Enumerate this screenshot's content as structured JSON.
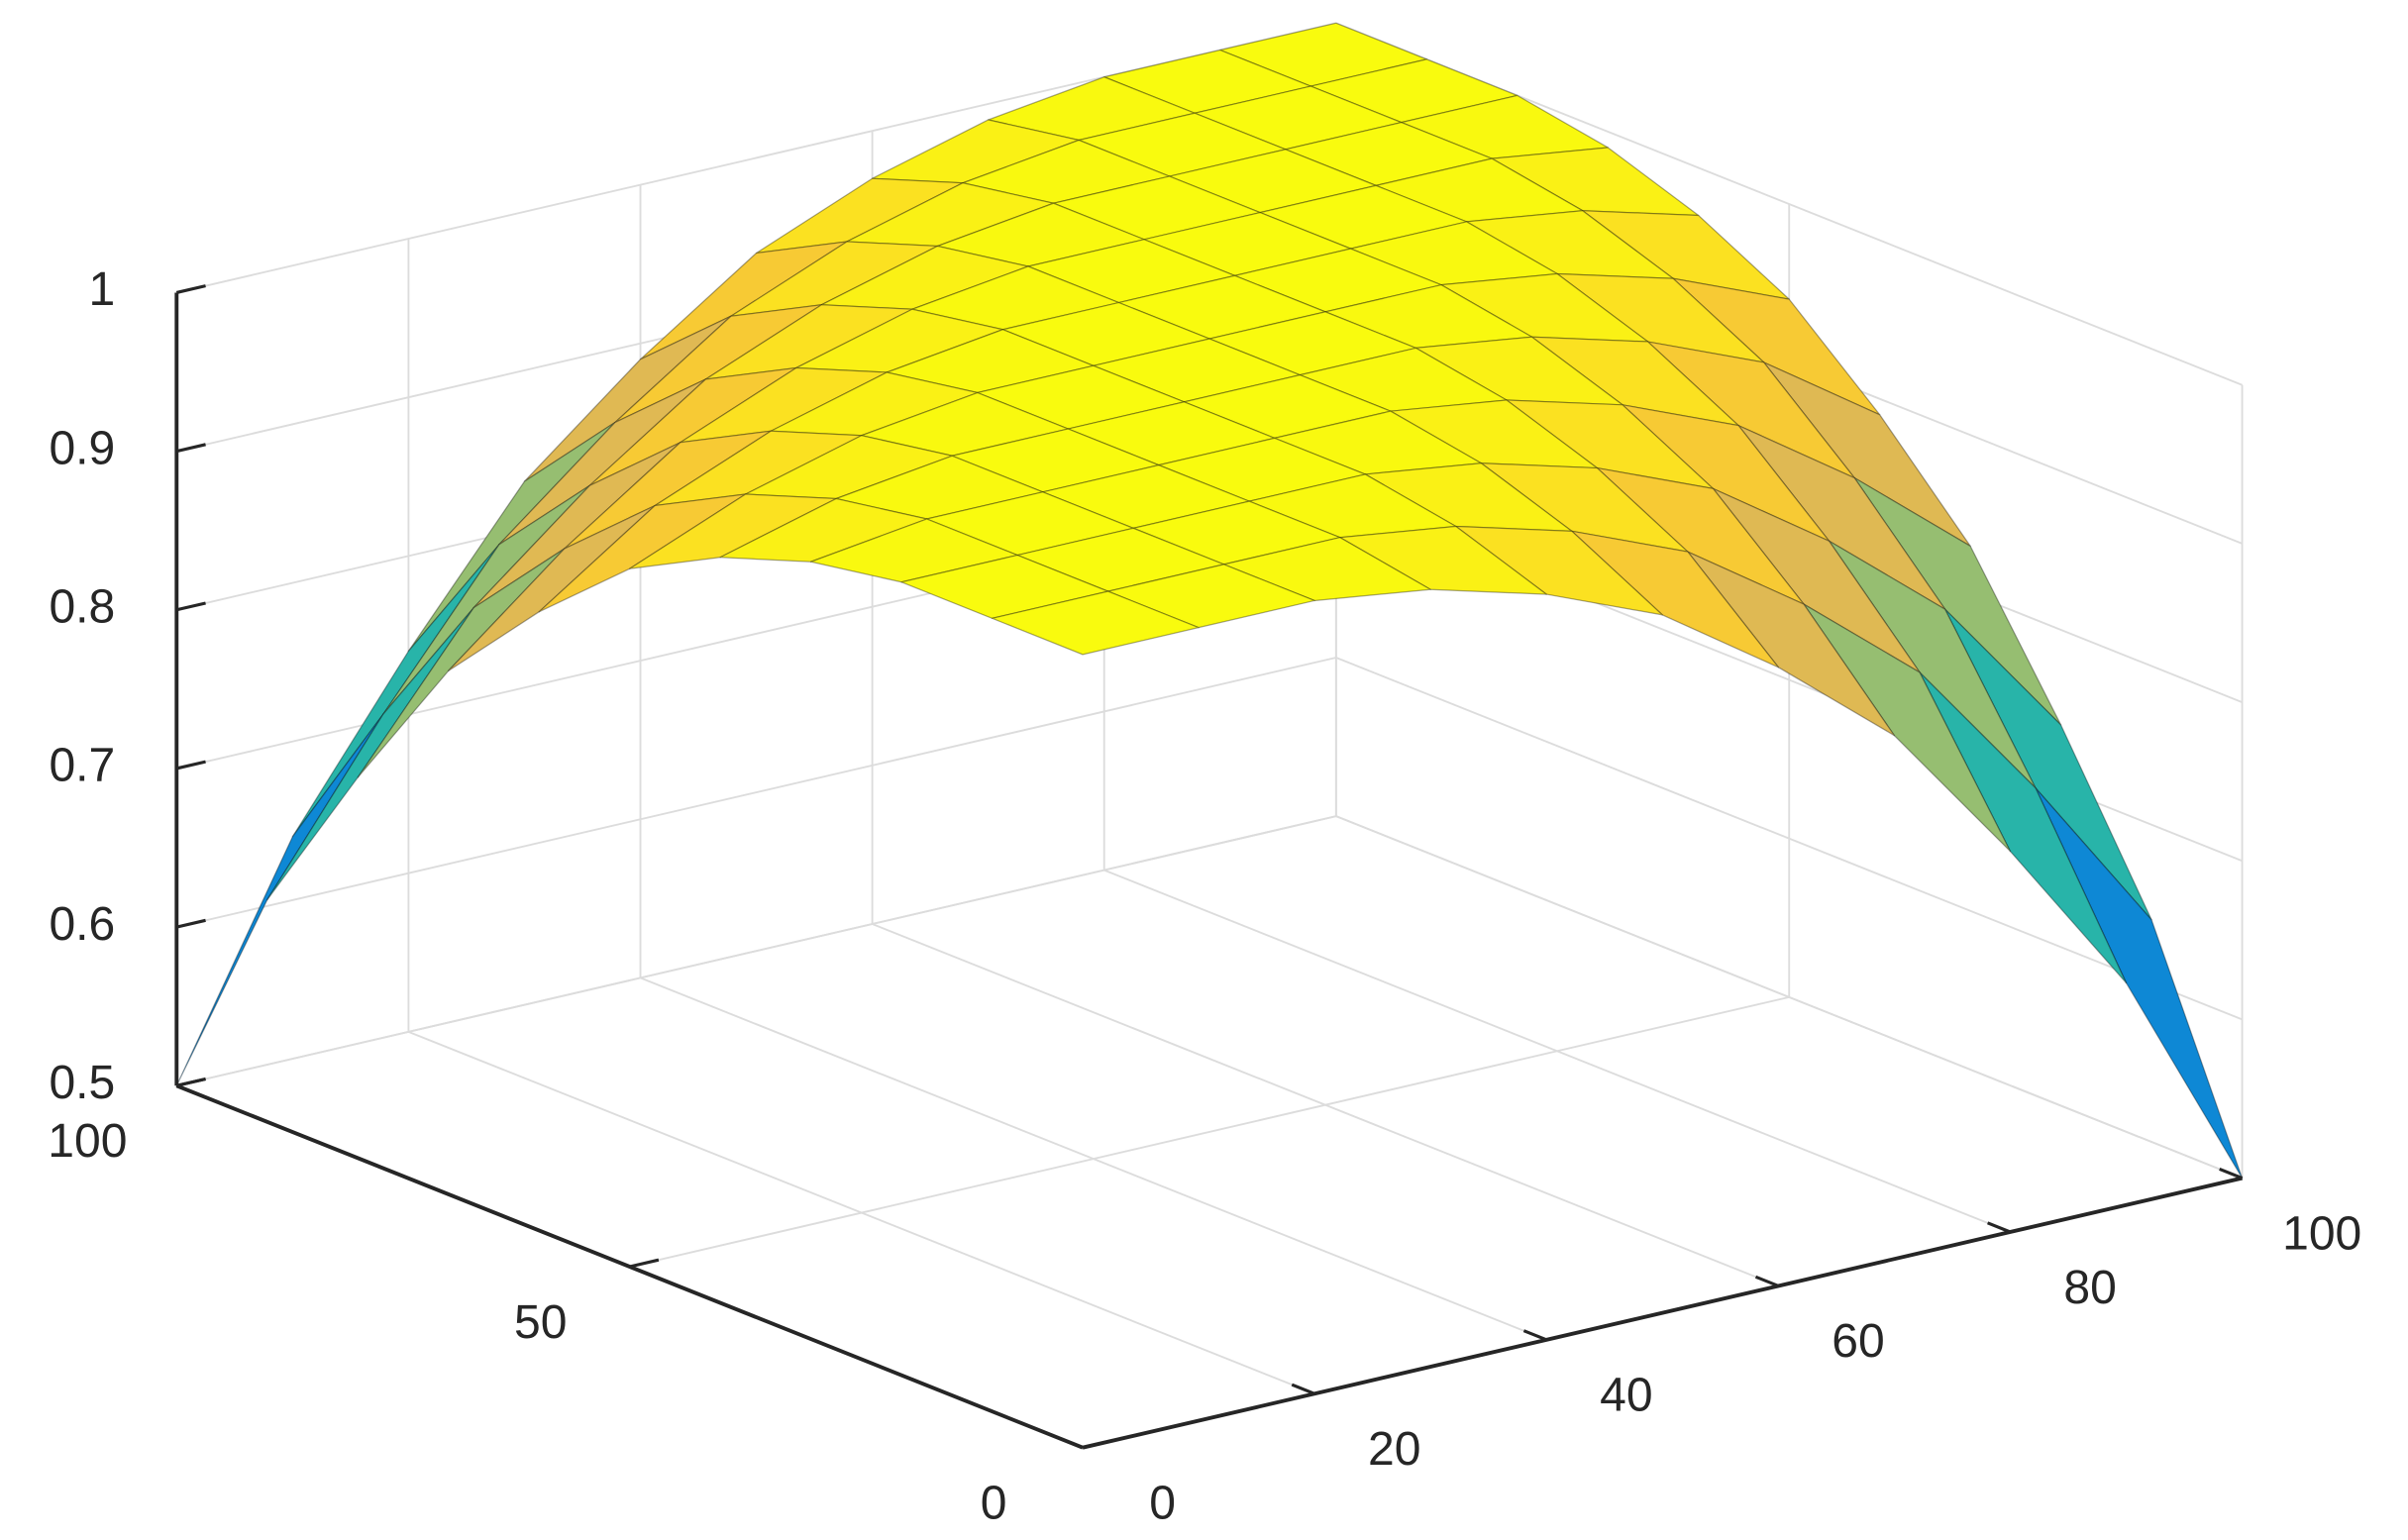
{
  "chart_data": {
    "type": "surface",
    "colormap": "parula",
    "grid": true,
    "x": [
      0,
      10,
      20,
      30,
      40,
      50,
      60,
      70,
      80,
      90,
      100
    ],
    "y": [
      0,
      10,
      20,
      30,
      40,
      50,
      60,
      70,
      80,
      90,
      100
    ],
    "z": [
      [
        1,
        1,
        1,
        0.99,
        0.97,
        0.94,
        0.89,
        0.83,
        0.74,
        0.64,
        0.5
      ],
      [
        1,
        1,
        1,
        1,
        0.99,
        0.97,
        0.94,
        0.89,
        0.83,
        0.74,
        0.64
      ],
      [
        1,
        1,
        1,
        1,
        1,
        0.99,
        0.97,
        0.94,
        0.89,
        0.83,
        0.74
      ],
      [
        0.99,
        1,
        1,
        1,
        1,
        1,
        0.99,
        0.97,
        0.94,
        0.89,
        0.83
      ],
      [
        0.97,
        0.99,
        1,
        1,
        1,
        1,
        1,
        0.99,
        0.97,
        0.94,
        0.89
      ],
      [
        0.94,
        0.97,
        0.99,
        1,
        1,
        1,
        1,
        1,
        0.99,
        0.97,
        0.94
      ],
      [
        0.89,
        0.94,
        0.97,
        0.99,
        1,
        1,
        1,
        1,
        1,
        0.99,
        0.97
      ],
      [
        0.83,
        0.89,
        0.94,
        0.97,
        0.99,
        1,
        1,
        1,
        1,
        1,
        0.99
      ],
      [
        0.74,
        0.83,
        0.89,
        0.94,
        0.97,
        0.99,
        1,
        1,
        1,
        1,
        1
      ],
      [
        0.64,
        0.74,
        0.83,
        0.89,
        0.94,
        0.97,
        0.99,
        1,
        1,
        1,
        1
      ],
      [
        0.5,
        0.64,
        0.74,
        0.83,
        0.89,
        0.94,
        0.97,
        0.99,
        1,
        1,
        1
      ]
    ],
    "xlim": [
      0,
      100
    ],
    "xticks": [
      0,
      20,
      40,
      60,
      80,
      100
    ],
    "ylim": [
      0,
      100
    ],
    "yticks": [
      0,
      50,
      100
    ],
    "zlim": [
      0.5,
      1
    ],
    "zticks": [
      0.5,
      0.6,
      0.7,
      0.8,
      0.9,
      1
    ]
  }
}
